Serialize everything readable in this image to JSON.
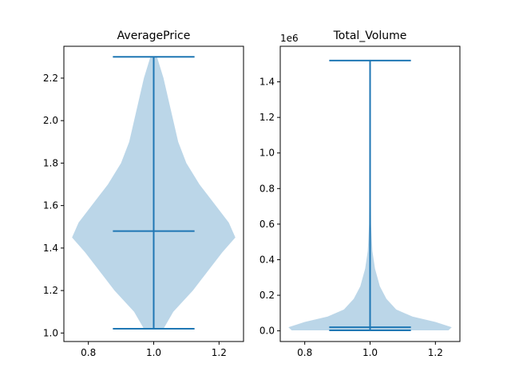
{
  "chart_data": [
    {
      "type": "violin",
      "title": "AveragePrice",
      "xlim": [
        0.725,
        1.275
      ],
      "ylim": [
        0.96,
        2.35
      ],
      "xticks": [
        0.8,
        1.0,
        1.2
      ],
      "xtick_labels": [
        "0.8",
        "1.0",
        "1.2"
      ],
      "yticks": [
        1.0,
        1.2,
        1.4,
        1.6,
        1.8,
        2.0,
        2.2
      ],
      "ytick_labels": [
        "1.0",
        "1.2",
        "1.4",
        "1.6",
        "1.8",
        "2.0",
        "2.2"
      ],
      "position": 1.0,
      "min": 1.02,
      "max": 2.3,
      "mean": 1.48,
      "density_halfwidth": [
        [
          1.02,
          0.03
        ],
        [
          1.1,
          0.06
        ],
        [
          1.2,
          0.12
        ],
        [
          1.3,
          0.17
        ],
        [
          1.38,
          0.21
        ],
        [
          1.45,
          0.25
        ],
        [
          1.52,
          0.23
        ],
        [
          1.6,
          0.19
        ],
        [
          1.7,
          0.14
        ],
        [
          1.8,
          0.1
        ],
        [
          1.9,
          0.075
        ],
        [
          2.0,
          0.06
        ],
        [
          2.1,
          0.045
        ],
        [
          2.2,
          0.03
        ],
        [
          2.3,
          0.01
        ]
      ]
    },
    {
      "type": "violin",
      "title": "Total_Volume",
      "offset_text": "1e6",
      "xlim": [
        0.725,
        1.275
      ],
      "ylim": [
        -0.06,
        1.6
      ],
      "xticks": [
        0.8,
        1.0,
        1.2
      ],
      "xtick_labels": [
        "0.8",
        "1.0",
        "1.2"
      ],
      "yticks": [
        0.0,
        0.2,
        0.4,
        0.6,
        0.8,
        1.0,
        1.2,
        1.4
      ],
      "ytick_labels": [
        "0.0",
        "0.2",
        "0.4",
        "0.6",
        "0.8",
        "1.0",
        "1.2",
        "1.4"
      ],
      "position": 1.0,
      "min": 0.003,
      "max": 1.52,
      "mean": 0.02,
      "density_halfwidth": [
        [
          0.003,
          0.24
        ],
        [
          0.02,
          0.25
        ],
        [
          0.05,
          0.2
        ],
        [
          0.08,
          0.13
        ],
        [
          0.12,
          0.08
        ],
        [
          0.18,
          0.05
        ],
        [
          0.25,
          0.03
        ],
        [
          0.35,
          0.015
        ],
        [
          0.45,
          0.007
        ],
        [
          0.6,
          0.003
        ],
        [
          0.8,
          0.002
        ],
        [
          1.0,
          0.0015
        ],
        [
          1.2,
          0.0015
        ],
        [
          1.4,
          0.002
        ],
        [
          1.5,
          0.0015
        ],
        [
          1.52,
          0.001
        ]
      ]
    }
  ],
  "colors": {
    "body": "#1f77b4",
    "body_opacity": 0.3,
    "line": "#1f77b4"
  }
}
